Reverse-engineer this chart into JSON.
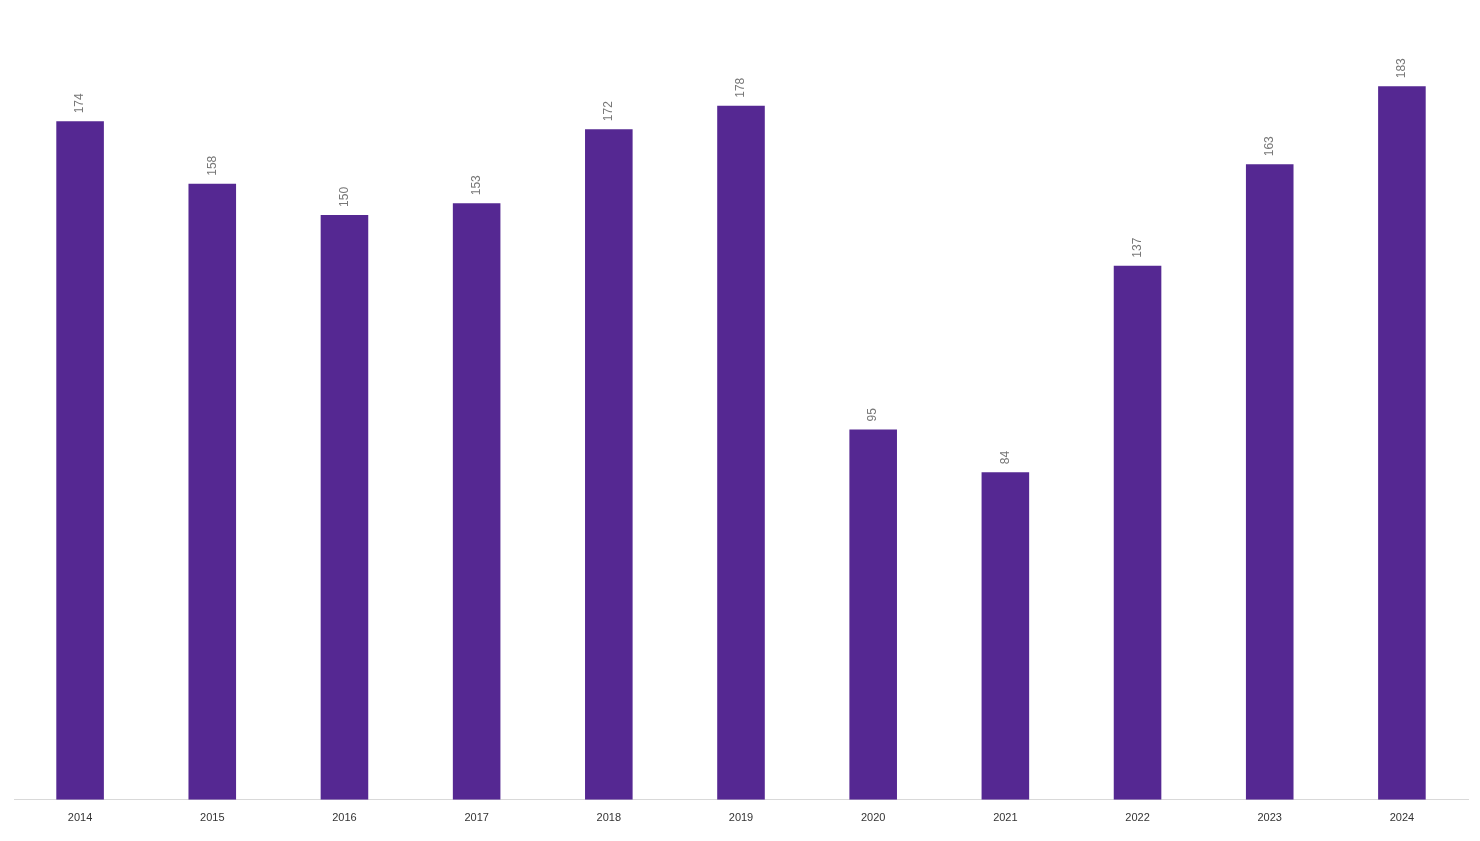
{
  "chart_data": {
    "type": "bar",
    "categories": [
      "2014",
      "2015",
      "2016",
      "2017",
      "2018",
      "2019",
      "2020",
      "2021",
      "2022",
      "2023",
      "2024"
    ],
    "values": [
      174,
      158,
      150,
      153,
      172,
      178,
      95,
      84,
      137,
      163,
      183
    ],
    "color": "#552892",
    "data_labels": true
  }
}
